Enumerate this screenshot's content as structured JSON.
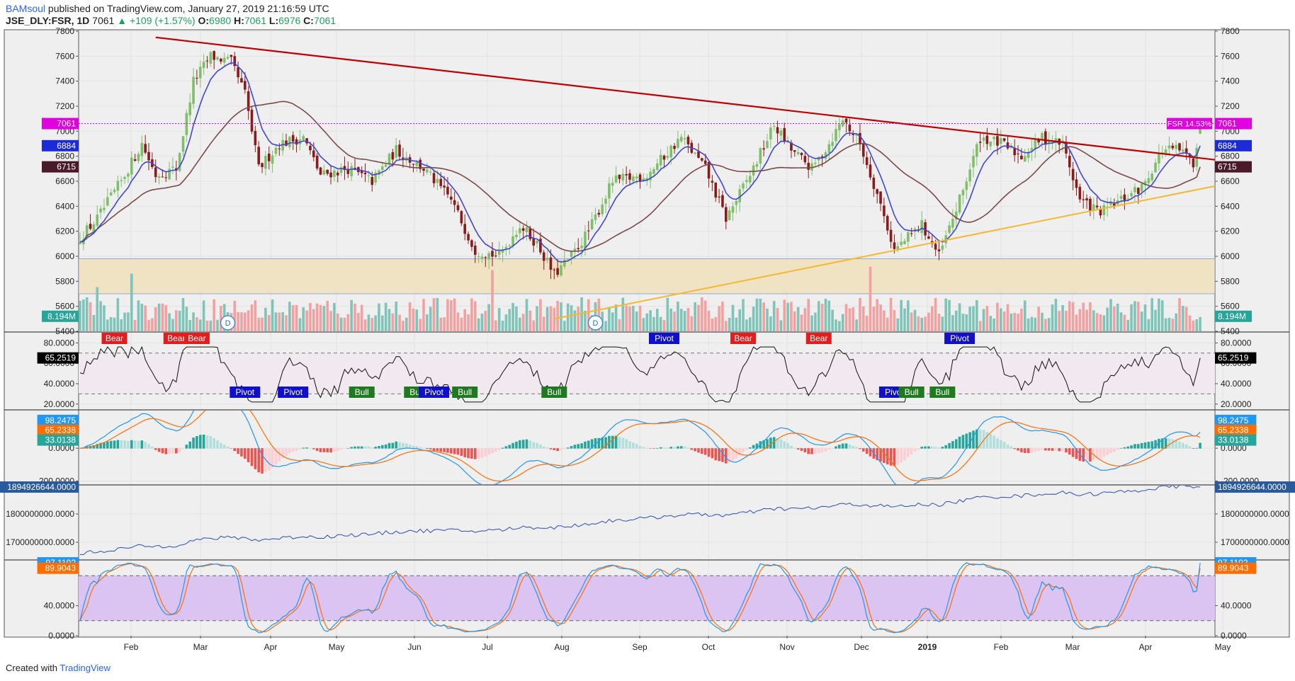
{
  "header": {
    "user": "BAMsoul",
    "published": "published on TradingView.com, January 27, 2019 21:16:59 UTC",
    "symbol": "JSE_DLY:FSR, 1D",
    "last": "7061",
    "change": "▲ +109 (+1.57%)",
    "o_label": "O:",
    "o_val": "6980",
    "h_label": "H:",
    "h_val": "7061",
    "l_label": "L:",
    "l_val": "6976",
    "c_label": "C:",
    "c_val": "7061"
  },
  "footer": {
    "created": "Created with",
    "brand": "TradingView"
  },
  "colors": {
    "up": "#7fbf6a",
    "down": "#8b1a1a",
    "ma_fast": "#3f48cc",
    "ma_slow": "#7a4a4a",
    "trend_down": "#c00000",
    "trend_up": "#f5b82e",
    "price_line": "#e000e0",
    "zone": "#f0e3c4",
    "vol_up": "#7fc4b8",
    "vol_down": "#f3a0a0",
    "rsi_bg": "#f2e8f0",
    "stoch_bg": "#dcc4f2"
  },
  "chart_data": [
    {
      "id": "price",
      "type": "candlestick",
      "ylim": [
        5400,
        7800
      ],
      "y_ticks": [
        "7800",
        "7600",
        "7400",
        "7200",
        "7000",
        "6800",
        "6600",
        "6400",
        "6200",
        "6000",
        "5800",
        "5600",
        "5400"
      ],
      "x_months": [
        "Feb",
        "Mar",
        "Apr",
        "May",
        "Jun",
        "Jul",
        "Aug",
        "Sep",
        "Oct",
        "Nov",
        "Dec",
        "2019",
        "Feb",
        "Mar",
        "Apr",
        "May"
      ],
      "anchors": [
        [
          0,
          6150
        ],
        [
          5,
          6300
        ],
        [
          12,
          6600
        ],
        [
          18,
          6900
        ],
        [
          22,
          6650
        ],
        [
          28,
          6700
        ],
        [
          33,
          7400
        ],
        [
          38,
          7600
        ],
        [
          44,
          7550
        ],
        [
          48,
          7300
        ],
        [
          52,
          6700
        ],
        [
          58,
          6900
        ],
        [
          65,
          6950
        ],
        [
          70,
          6650
        ],
        [
          78,
          6700
        ],
        [
          85,
          6600
        ],
        [
          92,
          6850
        ],
        [
          100,
          6700
        ],
        [
          108,
          6450
        ],
        [
          115,
          6050
        ],
        [
          122,
          6000
        ],
        [
          128,
          6250
        ],
        [
          133,
          6100
        ],
        [
          138,
          5850
        ],
        [
          143,
          6000
        ],
        [
          148,
          6200
        ],
        [
          155,
          6600
        ],
        [
          165,
          6650
        ],
        [
          175,
          6950
        ],
        [
          182,
          6700
        ],
        [
          188,
          6300
        ],
        [
          195,
          6650
        ],
        [
          202,
          7050
        ],
        [
          207,
          6850
        ],
        [
          213,
          6700
        ],
        [
          218,
          6900
        ],
        [
          222,
          7100
        ],
        [
          227,
          6900
        ],
        [
          232,
          6500
        ],
        [
          237,
          6050
        ],
        [
          245,
          6250
        ],
        [
          250,
          6000
        ],
        [
          256,
          6450
        ],
        [
          262,
          6950
        ],
        [
          268,
          6900
        ],
        [
          274,
          6800
        ],
        [
          280,
          6950
        ],
        [
          286,
          6900
        ],
        [
          291,
          6450
        ],
        [
          297,
          6350
        ],
        [
          303,
          6450
        ],
        [
          309,
          6550
        ],
        [
          315,
          6850
        ],
        [
          320,
          6850
        ],
        [
          324,
          6750
        ],
        [
          326,
          7061
        ]
      ],
      "ma_fast_last": "6884",
      "ma_slow_last": "6715",
      "last_close": "7061",
      "price_label_right": "FSR 14.53%",
      "zone": [
        5700,
        5980
      ],
      "trendline_down": [
        [
          22,
          7750
        ],
        [
          356,
          6690
        ]
      ],
      "trendline_up": [
        [
          138,
          5500
        ],
        [
          350,
          6670
        ]
      ],
      "volume_label": "8.194M",
      "dividend_markers": [
        "D",
        "D"
      ]
    },
    {
      "id": "rsi",
      "type": "line",
      "ylim": [
        15,
        90
      ],
      "y_ticks": [
        "80.0000",
        "60.0000",
        "40.0000",
        "20.0000"
      ],
      "bands": [
        70,
        30
      ],
      "last": "65.2519",
      "signals": [
        {
          "label": "Bear",
          "i": 10
        },
        {
          "label": "Bear",
          "i": 28
        },
        {
          "label": "Bear",
          "i": 34
        },
        {
          "label": "Pivot",
          "i": 48
        },
        {
          "label": "Pivot",
          "i": 62
        },
        {
          "label": "Bull",
          "i": 82
        },
        {
          "label": "Bull",
          "i": 98
        },
        {
          "label": "Pivot",
          "i": 103
        },
        {
          "label": "Bull",
          "i": 112
        },
        {
          "label": "Bull",
          "i": 138
        },
        {
          "label": "Pivot",
          "i": 170
        },
        {
          "label": "Bear",
          "i": 193
        },
        {
          "label": "Bear",
          "i": 215
        },
        {
          "label": "Pivot",
          "i": 237
        },
        {
          "label": "Bull",
          "i": 242
        },
        {
          "label": "Bull",
          "i": 251
        },
        {
          "label": "Pivot",
          "i": 256
        }
      ]
    },
    {
      "id": "macd",
      "type": "line",
      "ylim": [
        -220,
        230
      ],
      "y_ticks": [
        "0.0000",
        "-200.0000"
      ],
      "last_macd": "98.2475",
      "last_signal": "65.2338",
      "last_hist": "33.0138"
    },
    {
      "id": "obv",
      "type": "line",
      "ylim": [
        1640000000,
        1900000000
      ],
      "y_ticks": [
        "1800000000.0000",
        "1700000000.0000"
      ],
      "last": "1894926644.0000"
    },
    {
      "id": "stoch",
      "type": "line",
      "ylim": [
        0,
        100
      ],
      "y_ticks": [
        "40.0000",
        "0.0000"
      ],
      "bands": [
        80,
        20
      ],
      "last_k": "97.1102",
      "last_d": "89.9043"
    }
  ]
}
